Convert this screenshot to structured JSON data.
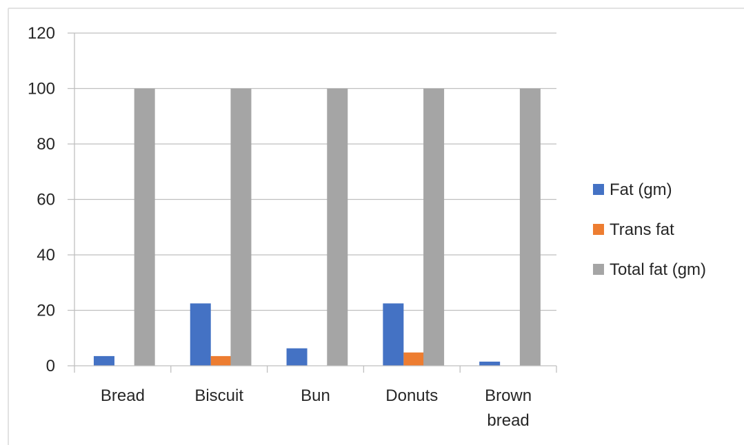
{
  "chart_data": {
    "type": "bar",
    "title": "",
    "xlabel": "",
    "ylabel": "",
    "categories": [
      [
        "Bread"
      ],
      [
        "Biscuit"
      ],
      [
        "Bun"
      ],
      [
        "Donuts"
      ],
      [
        "Brown",
        "bread"
      ]
    ],
    "series": [
      {
        "name": "Fat (gm)",
        "color": "#4472C4",
        "values": [
          3.5,
          22.5,
          6.3,
          22.5,
          1.5
        ]
      },
      {
        "name": "Trans fat",
        "color": "#ED7D31",
        "values": [
          0,
          3.5,
          0,
          4.8,
          0
        ]
      },
      {
        "name": "Total fat (gm)",
        "color": "#A5A5A5",
        "values": [
          100,
          100,
          100,
          100,
          100
        ]
      }
    ],
    "ylim": [
      0,
      120
    ],
    "yticks": [
      0,
      20,
      40,
      60,
      80,
      100,
      120
    ],
    "grid": true,
    "legend_position": "right"
  }
}
